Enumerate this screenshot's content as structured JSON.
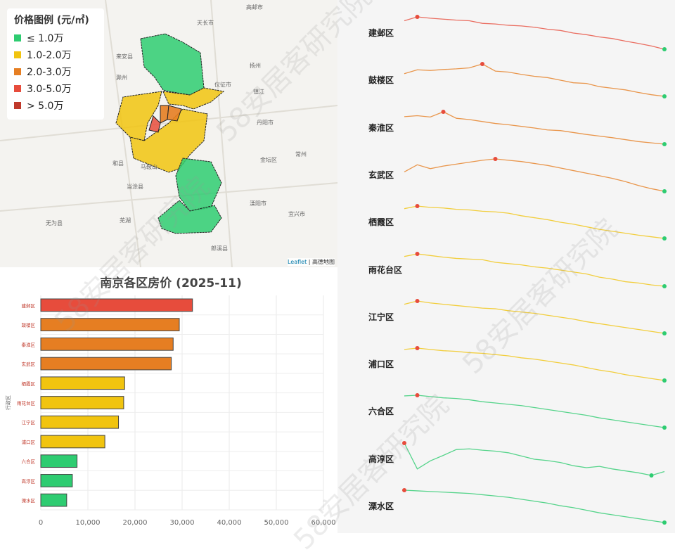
{
  "legend": {
    "title": "价格图例 (元/㎡)",
    "items": [
      {
        "label": "≤ 1.0万",
        "color": "#2ecc71"
      },
      {
        "label": "1.0-2.0万",
        "color": "#f1c40f"
      },
      {
        "label": "2.0-3.0万",
        "color": "#e67e22"
      },
      {
        "label": "3.0-5.0万",
        "color": "#e74c3c"
      },
      {
        "label": "> 5.0万",
        "color": "#c0392b"
      }
    ]
  },
  "map": {
    "attribution_link": "Leaflet",
    "attribution_source": "高德地图",
    "places": [
      "天长市",
      "来安县",
      "滁州",
      "扬州",
      "仪征市",
      "镇江",
      "丹阳市",
      "金坛区",
      "常州",
      "和县",
      "马鞍山",
      "当涂县",
      "芜湖",
      "溧阳市",
      "宜兴市",
      "郎溪县",
      "无为县",
      "高邮市"
    ]
  },
  "watermark": "58安居客研究院",
  "chart_data": [
    {
      "type": "bar",
      "orientation": "horizontal",
      "title": "南京各区房价 (2025-11)",
      "xlabel": "",
      "ylabel": "行政区",
      "categories": [
        "建邺区",
        "鼓楼区",
        "秦淮区",
        "玄武区",
        "栖霞区",
        "雨花台区",
        "江宁区",
        "浦口区",
        "六合区",
        "高淳区",
        "溧水区"
      ],
      "values": [
        32200,
        29400,
        28100,
        27700,
        17800,
        17600,
        16500,
        13600,
        7700,
        6700,
        5500
      ],
      "colors": [
        "#e74c3c",
        "#e67e22",
        "#e67e22",
        "#e67e22",
        "#f1c40f",
        "#f1c40f",
        "#f1c40f",
        "#f1c40f",
        "#2ecc71",
        "#2ecc71",
        "#2ecc71"
      ],
      "xlim": [
        0,
        60000
      ],
      "xticks": [
        "0",
        "10,000",
        "20,000",
        "30,000",
        "40,000",
        "50,000",
        "60,000"
      ],
      "grid": true
    },
    {
      "type": "line",
      "kind": "sparklines",
      "series": [
        {
          "name": "建邺区",
          "color": "#e74c3c",
          "values": [
            88,
            100,
            96,
            93,
            90,
            88,
            80,
            78,
            74,
            72,
            68,
            62,
            58,
            50,
            45,
            38,
            33,
            25,
            18,
            10,
            0
          ]
        },
        {
          "name": "鼓楼区",
          "color": "#e67e22",
          "values": [
            70,
            82,
            80,
            83,
            85,
            88,
            100,
            78,
            75,
            68,
            62,
            58,
            50,
            42,
            40,
            30,
            25,
            20,
            12,
            5,
            0
          ]
        },
        {
          "name": "秦淮区",
          "color": "#e67e22",
          "values": [
            85,
            88,
            84,
            100,
            80,
            76,
            70,
            64,
            60,
            55,
            50,
            44,
            42,
            36,
            30,
            25,
            20,
            14,
            8,
            4,
            0
          ]
        },
        {
          "name": "玄武区",
          "color": "#e67e22",
          "values": [
            60,
            82,
            70,
            78,
            84,
            90,
            96,
            100,
            96,
            92,
            86,
            80,
            72,
            64,
            56,
            48,
            40,
            30,
            18,
            8,
            0
          ]
        },
        {
          "name": "栖霞区",
          "color": "#f1c40f",
          "values": [
            92,
            100,
            96,
            94,
            90,
            88,
            84,
            82,
            78,
            70,
            64,
            58,
            50,
            44,
            36,
            28,
            22,
            16,
            10,
            5,
            0
          ]
        },
        {
          "name": "雨花台区",
          "color": "#f1c40f",
          "values": [
            92,
            100,
            95,
            90,
            86,
            84,
            82,
            74,
            70,
            66,
            60,
            56,
            50,
            44,
            38,
            28,
            22,
            14,
            10,
            4,
            0
          ]
        },
        {
          "name": "江宁区",
          "color": "#f1c40f",
          "values": [
            90,
            100,
            94,
            90,
            86,
            82,
            78,
            76,
            70,
            66,
            62,
            56,
            50,
            44,
            36,
            30,
            24,
            18,
            12,
            6,
            0
          ]
        },
        {
          "name": "浦口区",
          "color": "#f1c40f",
          "values": [
            96,
            100,
            96,
            92,
            90,
            86,
            84,
            80,
            76,
            70,
            66,
            60,
            54,
            48,
            40,
            32,
            26,
            18,
            12,
            6,
            0
          ]
        },
        {
          "name": "六合区",
          "color": "#2ecc71",
          "values": [
            98,
            100,
            96,
            92,
            90,
            86,
            80,
            76,
            72,
            68,
            62,
            56,
            50,
            44,
            38,
            30,
            24,
            18,
            12,
            6,
            0
          ]
        },
        {
          "name": "高淳区",
          "color": "#2ecc71",
          "values": [
            100,
            20,
            45,
            62,
            80,
            82,
            78,
            75,
            70,
            60,
            50,
            46,
            40,
            30,
            24,
            28,
            20,
            14,
            8,
            0,
            12
          ]
        },
        {
          "name": "溧水区",
          "color": "#2ecc71",
          "values": [
            100,
            98,
            96,
            94,
            92,
            90,
            86,
            82,
            78,
            72,
            66,
            60,
            52,
            46,
            38,
            30,
            24,
            18,
            12,
            6,
            0
          ]
        }
      ]
    }
  ]
}
